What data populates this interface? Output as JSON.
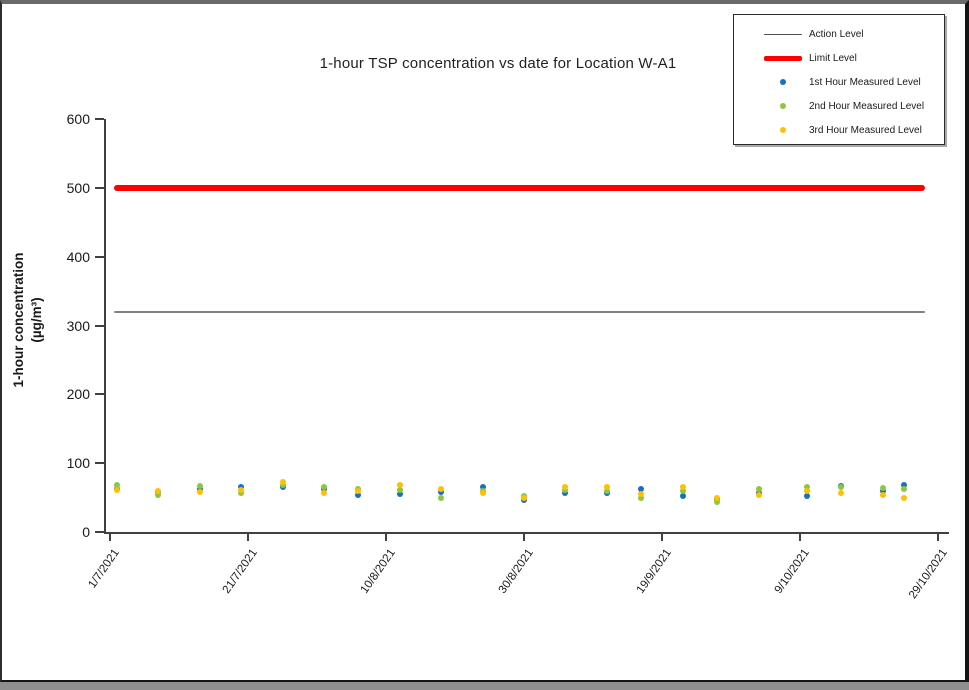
{
  "chart_data": {
    "type": "scatter",
    "title": "1-hour TSP concentration vs date for Location W-A1",
    "ylabel_line1": "1-hour concentration",
    "ylabel_line2": "(µg/m³)",
    "ylim": [
      0,
      600
    ],
    "yticks": [
      0,
      100,
      200,
      300,
      400,
      500,
      600
    ],
    "x_axis": {
      "tick_labels": [
        "1/7/2021",
        "21/7/2021",
        "10/8/2021",
        "30/8/2021",
        "19/9/2021",
        "9/10/2021",
        "29/10/2021"
      ],
      "tick_days": [
        0,
        20,
        40,
        60,
        80,
        100,
        120
      ],
      "note_day_zero": "1/7/2021"
    },
    "reference_lines": [
      {
        "name": "Action Level",
        "value": 320,
        "color": "#808080",
        "thickness": 2
      },
      {
        "name": "Limit Level",
        "value": 500,
        "color": "#ff0000",
        "thickness": 6
      }
    ],
    "x_days": [
      1,
      7,
      13,
      19,
      25,
      31,
      36,
      42,
      48,
      54,
      60,
      66,
      72,
      77,
      83,
      88,
      94,
      101,
      106,
      112,
      115
    ],
    "series": [
      {
        "name": "1st Hour Measured Level",
        "color": "#1b6fc0",
        "values": [
          63,
          58,
          63,
          65,
          66,
          62,
          54,
          55,
          58,
          66,
          47,
          56,
          57,
          62,
          52,
          48,
          57,
          53,
          67,
          59,
          69
        ]
      },
      {
        "name": "2nd Hour Measured Level",
        "color": "#8dc63f",
        "values": [
          68,
          54,
          67,
          57,
          69,
          66,
          63,
          61,
          49,
          59,
          52,
          61,
          60,
          49,
          59,
          43,
          63,
          65,
          65,
          64,
          62
        ]
      },
      {
        "name": "3rd Hour Measured Level",
        "color": "#ffc000",
        "values": [
          61,
          60,
          58,
          61,
          73,
          57,
          59,
          68,
          62,
          56,
          50,
          65,
          65,
          55,
          65,
          49,
          54,
          60,
          56,
          54,
          50
        ]
      }
    ],
    "grid": false,
    "legend_position": "top-right"
  },
  "legend": {
    "items": [
      {
        "label": "Action Level",
        "swatch": "line",
        "color": "#4d4d4d",
        "thickness": 1
      },
      {
        "label": "Limit Level",
        "swatch": "line",
        "color": "#ff0000",
        "thickness": 5
      },
      {
        "label": "1st Hour Measured Level",
        "swatch": "dot",
        "color": "#1b6fc0"
      },
      {
        "label": "2nd Hour Measured Level",
        "swatch": "dot",
        "color": "#8dc63f"
      },
      {
        "label": "3rd Hour Measured Level",
        "swatch": "dot",
        "color": "#ffc000"
      }
    ]
  }
}
